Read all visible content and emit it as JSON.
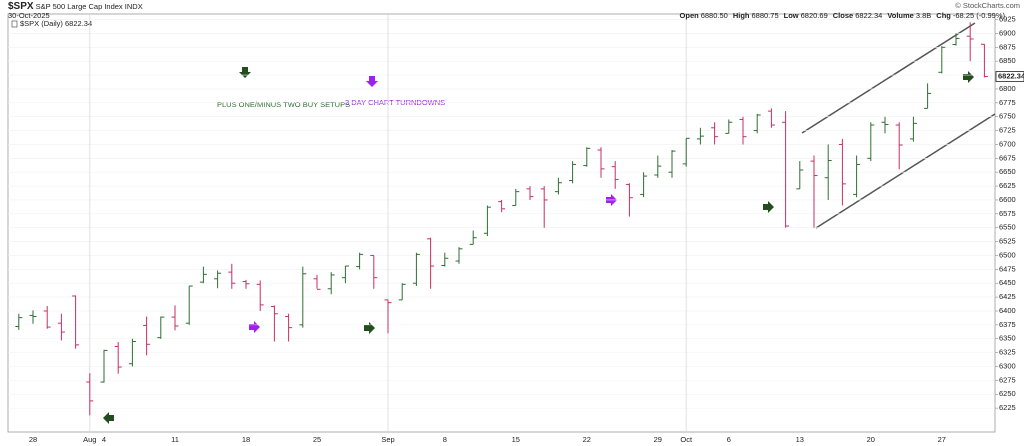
{
  "header": {
    "symbol": "$SPX",
    "name": "S&P 500 Large Cap Index",
    "exchange": "INDX",
    "date": "30-Oct-2025",
    "credit": "© StockCharts.com",
    "quote": [
      {
        "label": "Open",
        "value": "6880.50"
      },
      {
        "label": "High",
        "value": "6880.75"
      },
      {
        "label": "Low",
        "value": "6820.69"
      },
      {
        "label": "Close",
        "value": "6822.34"
      },
      {
        "label": "Volume",
        "value": "3.8B"
      },
      {
        "label": "Chg",
        "value": "-68.25 (-0.99%)"
      }
    ],
    "legend": "$SPX (Daily) 6822.34"
  },
  "annotations": {
    "buy_setups": "PLUS ONE/MINUS TWO BUY SETUPS",
    "turndowns": "3 DAY CHART TURNDOWNS"
  },
  "chart_data": {
    "type": "ohlc",
    "categories": [
      null,
      "28",
      null,
      null,
      null,
      "Aug",
      "4",
      null,
      null,
      null,
      null,
      "11",
      null,
      null,
      null,
      null,
      "18",
      null,
      null,
      null,
      null,
      "25",
      null,
      null,
      null,
      null,
      "Sep",
      null,
      null,
      null,
      "8",
      null,
      null,
      null,
      null,
      "15",
      null,
      null,
      null,
      null,
      "22",
      null,
      null,
      null,
      null,
      "29",
      null,
      "Oct",
      null,
      null,
      "6",
      null,
      null,
      null,
      null,
      "13",
      null,
      null,
      null,
      null,
      "20",
      null,
      null,
      null,
      null,
      "27",
      null,
      null,
      null
    ],
    "open": [
      6372,
      6392,
      6400,
      6378,
      6427,
      6272,
      6272,
      6336,
      6305,
      6374,
      6352,
      6389,
      6378,
      6452,
      6458,
      6470,
      6453,
      6448,
      6408,
      6390,
      6375,
      6458,
      6440,
      6460,
      6480,
      6500,
      6420,
      6420,
      6450,
      6530,
      6482,
      6490,
      6520,
      6540,
      6597,
      6590,
      6620,
      6620,
      6615,
      6635,
      6662,
      6690,
      6660,
      6628,
      6610,
      6645,
      6650,
      6665,
      6710,
      6730,
      6720,
      6745,
      6725,
      6760,
      6740,
      6620,
      6670,
      6640,
      6700,
      6610,
      6675,
      6740,
      6735,
      6710,
      6765,
      6830,
      6880,
      6895,
      6880.5
    ],
    "high": [
      6395,
      6401,
      6409,
      6395,
      6428,
      6288,
      6330,
      6344,
      6350,
      6390,
      6390,
      6410,
      6445,
      6480,
      6473,
      6485,
      6456,
      6455,
      6410,
      6395,
      6480,
      6465,
      6470,
      6481,
      6505,
      6500,
      6420,
      6450,
      6505,
      6532,
      6505,
      6515,
      6545,
      6590,
      6600,
      6620,
      6625,
      6625,
      6640,
      6670,
      6695,
      6695,
      6670,
      6630,
      6650,
      6680,
      6690,
      6711,
      6730,
      6740,
      6745,
      6750,
      6755,
      6765,
      6760,
      6670,
      6680,
      6700,
      6710,
      6680,
      6740,
      6750,
      6740,
      6750,
      6810,
      6877,
      6900,
      6920,
      6880.75
    ],
    "low": [
      6366,
      6377,
      6368,
      6347,
      6332,
      6212,
      6271,
      6287,
      6300,
      6320,
      6350,
      6365,
      6375,
      6450,
      6441,
      6440,
      6440,
      6400,
      6345,
      6345,
      6370,
      6440,
      6430,
      6450,
      6475,
      6440,
      6360,
      6420,
      6445,
      6440,
      6480,
      6485,
      6520,
      6535,
      6578,
      6590,
      6600,
      6550,
      6610,
      6630,
      6660,
      6640,
      6620,
      6570,
      6605,
      6640,
      6640,
      6660,
      6700,
      6700,
      6720,
      6700,
      6720,
      6730,
      6550,
      6620,
      6550,
      6600,
      6590,
      6605,
      6670,
      6720,
      6655,
      6705,
      6765,
      6828,
      6878,
      6850,
      6820.69
    ],
    "close": [
      6388,
      6390,
      6371,
      6362,
      6339,
      6238,
      6329,
      6299,
      6345,
      6340,
      6389,
      6373,
      6445,
      6466,
      6468,
      6450,
      6449,
      6411,
      6395,
      6370,
      6467,
      6439,
      6465,
      6481,
      6502,
      6460,
      6415,
      6448,
      6502,
      6481,
      6495,
      6512,
      6532,
      6587,
      6584,
      6615,
      6606,
      6600,
      6631,
      6664,
      6693,
      6656,
      6637,
      6604,
      6643,
      6661,
      6688,
      6711,
      6715,
      6714,
      6740,
      6714,
      6753,
      6735,
      6553,
      6654,
      6644,
      6671,
      6629,
      6664,
      6735,
      6736,
      6699,
      6738,
      6792,
      6875,
      6891,
      6890,
      6822.34
    ],
    "up_color": "#2f6e33",
    "down_color": "#c8305f",
    "ylim": [
      6182,
      6935
    ],
    "yticks": [
      6225,
      6250,
      6275,
      6300,
      6325,
      6350,
      6375,
      6400,
      6425,
      6450,
      6475,
      6500,
      6525,
      6550,
      6575,
      6600,
      6625,
      6650,
      6675,
      6700,
      6725,
      6750,
      6775,
      6800,
      6825,
      6850,
      6875,
      6900,
      6925
    ],
    "grid": true
  }
}
